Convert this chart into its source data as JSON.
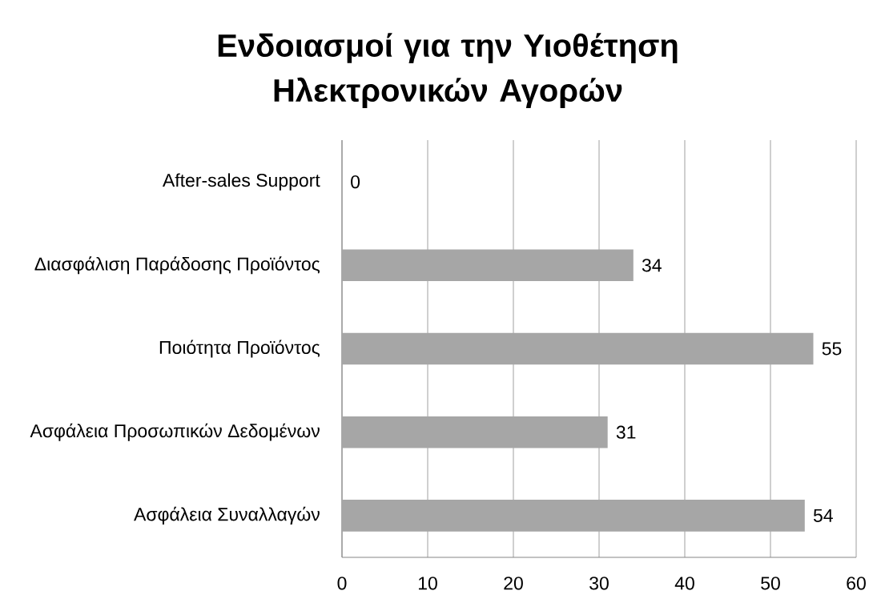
{
  "chart_data": {
    "type": "bar",
    "orientation": "horizontal",
    "title": "Ενδοιασμοί για την Υιοθέτηση Ηλεκτρονικών Αγορών",
    "categories": [
      "After-sales Support",
      "Διασφάλιση Παράδοσης Προϊόντος",
      "Ποιότητα Προϊόντος",
      "Ασφάλεια Προσωπικών Δεδομένων",
      "Ασφάλεια Συναλλαγών"
    ],
    "values": [
      0,
      34,
      55,
      31,
      54
    ],
    "color": "#a6a6a6",
    "xlim": [
      0,
      60
    ],
    "xticks": [
      0,
      10,
      20,
      30,
      40,
      50,
      60
    ],
    "grid": "x",
    "data_labels": true
  }
}
